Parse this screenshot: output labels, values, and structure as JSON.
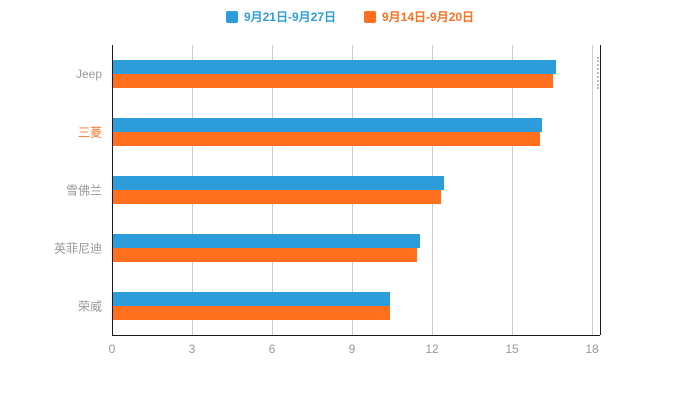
{
  "chart_data": {
    "type": "bar",
    "orientation": "horizontal",
    "title": "",
    "categories": [
      "Jeep",
      "三菱",
      "雪佛兰",
      "英菲尼迪",
      "荣威"
    ],
    "series": [
      {
        "name": "9月21日-9月27日",
        "color": "#2D9CDB",
        "values": [
          16.6,
          16.1,
          12.4,
          11.5,
          10.4
        ]
      },
      {
        "name": "9月14日-9月20日",
        "color": "#FF6F1E",
        "values": [
          16.5,
          16.0,
          12.3,
          11.4,
          10.4
        ]
      }
    ],
    "xlim": [
      0,
      18
    ],
    "x_ticks": [
      0,
      3,
      6,
      9,
      12,
      15,
      18
    ],
    "grid": true,
    "legend_position": "top",
    "category_label_colors": [
      "#999999",
      "#FF6F1E",
      "#999999",
      "#999999",
      "#999999"
    ],
    "axis_color": "#1a1a1a",
    "grid_color": "#cccccc",
    "tick_label_color": "#999999"
  }
}
